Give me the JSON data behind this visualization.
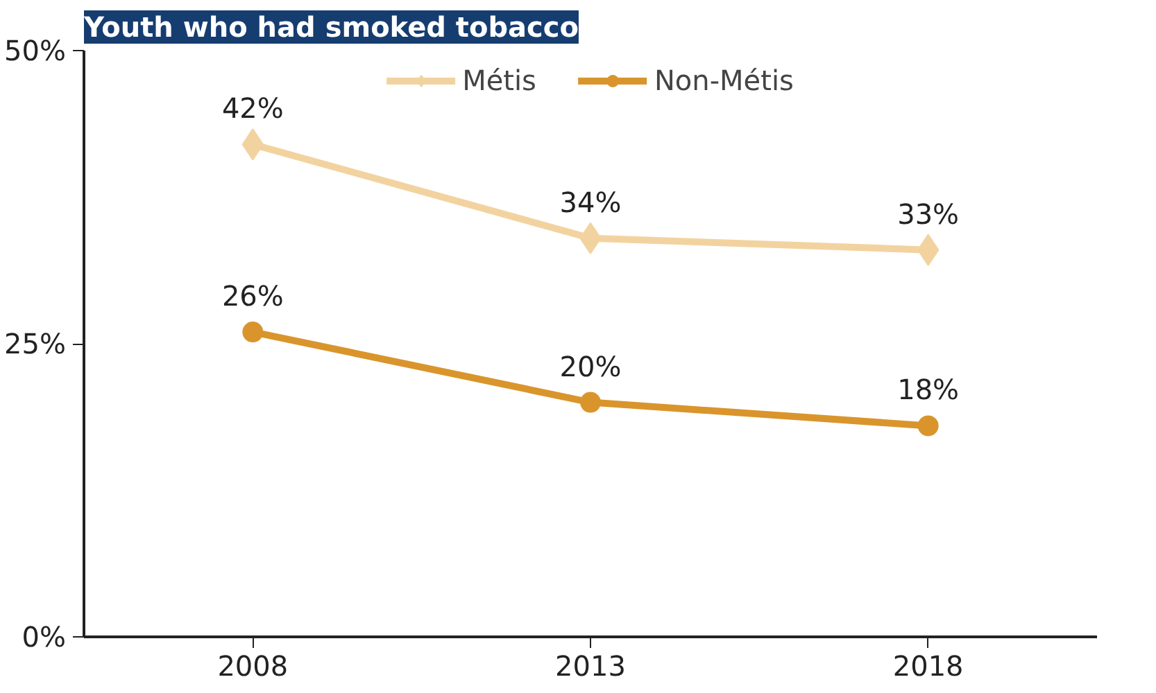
{
  "chart_data": {
    "type": "line",
    "title": "Youth who had smoked tobacco",
    "categories": [
      "2008",
      "2013",
      "2018"
    ],
    "series": [
      {
        "name": "Métis",
        "color": "#f2d3a0",
        "marker": "diamond",
        "values": [
          42,
          34,
          33
        ],
        "value_labels": [
          "42%",
          "34%",
          "33%"
        ]
      },
      {
        "name": "Non-Métis",
        "color": "#d9952c",
        "marker": "circle",
        "values": [
          26,
          20,
          18
        ],
        "value_labels": [
          "26%",
          "20%",
          "18%"
        ]
      }
    ],
    "ylim": [
      0,
      50
    ],
    "yticks": [
      {
        "value": 0,
        "label": "0%"
      },
      {
        "value": 25,
        "label": "25%"
      },
      {
        "value": 50,
        "label": "50%"
      }
    ],
    "grid": false,
    "legend": "top",
    "line_style": "solid"
  }
}
